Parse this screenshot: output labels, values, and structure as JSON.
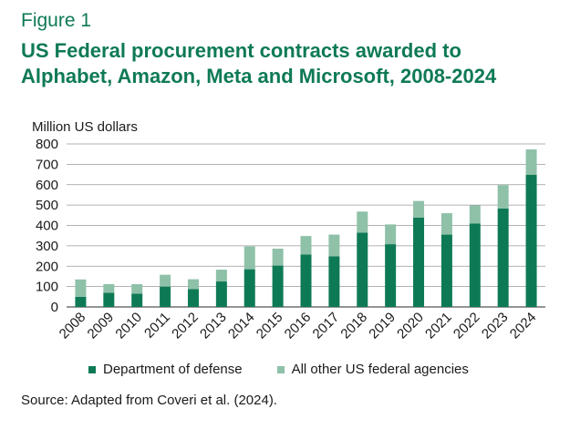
{
  "figure_label": "Figure 1",
  "title_line1": "US Federal procurement contracts awarded to",
  "title_line2": "Alphabet, Amazon, Meta and Microsoft, 2008-2024",
  "source": "Source: Adapted from Coveri et al. (2024).",
  "colors": {
    "defense": "#0e7a55",
    "other": "#8ec1a8",
    "title": "#0e7a55"
  },
  "chart_data": {
    "type": "bar",
    "stacked": true,
    "ylabel": "Million US dollars",
    "ylim": [
      0,
      800
    ],
    "yticks": [
      0,
      100,
      200,
      300,
      400,
      500,
      600,
      700,
      800
    ],
    "grid": true,
    "legend_position": "bottom",
    "categories": [
      "2008",
      "2009",
      "2010",
      "2011",
      "2012",
      "2013",
      "2014",
      "2015",
      "2016",
      "2017",
      "2018",
      "2019",
      "2020",
      "2021",
      "2022",
      "2023",
      "2024"
    ],
    "series": [
      {
        "name": "Department of defense",
        "values": [
          50,
          70,
          65,
          100,
          88,
          125,
          185,
          203,
          258,
          248,
          365,
          308,
          438,
          355,
          410,
          483,
          648
        ]
      },
      {
        "name": "All other US federal agencies",
        "values": [
          85,
          42,
          47,
          58,
          48,
          58,
          112,
          83,
          90,
          107,
          103,
          97,
          82,
          105,
          88,
          115,
          125
        ]
      }
    ]
  }
}
